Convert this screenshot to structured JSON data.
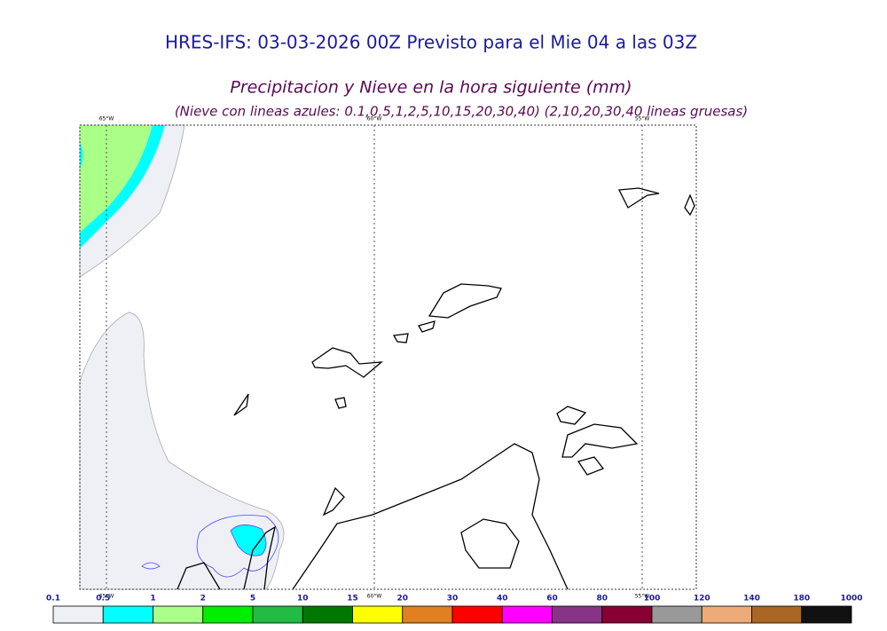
{
  "map": {
    "title": "HRES-IFS: 03-03-2026 00Z Previsto para el Mie 04 a las 03Z",
    "subtitle": "Precipitacion y Nieve en la hora siguiente (mm)",
    "note": "(Nieve con lineas azules: 0.1,0.5,1,2,5,10,15,20,30,40)  (2,10,20,30,40 lineas gruesas)",
    "meridians": [
      "65°W",
      "60°W",
      "55°W"
    ]
  },
  "colorbar": {
    "labels": [
      0.1,
      0.5,
      1,
      2,
      5,
      10,
      15,
      20,
      30,
      40,
      60,
      80,
      100,
      120,
      140,
      180,
      1000
    ],
    "colors": [
      "#eff0f5",
      "#00ffff",
      "#aaff88",
      "#00ee00",
      "#22bb44",
      "#007700",
      "#ffff00",
      "#e08020",
      "#ff0000",
      "#ff00ff",
      "#883388",
      "#880033",
      "#999999",
      "#eeaa77",
      "#aa6622",
      "#111111"
    ]
  }
}
